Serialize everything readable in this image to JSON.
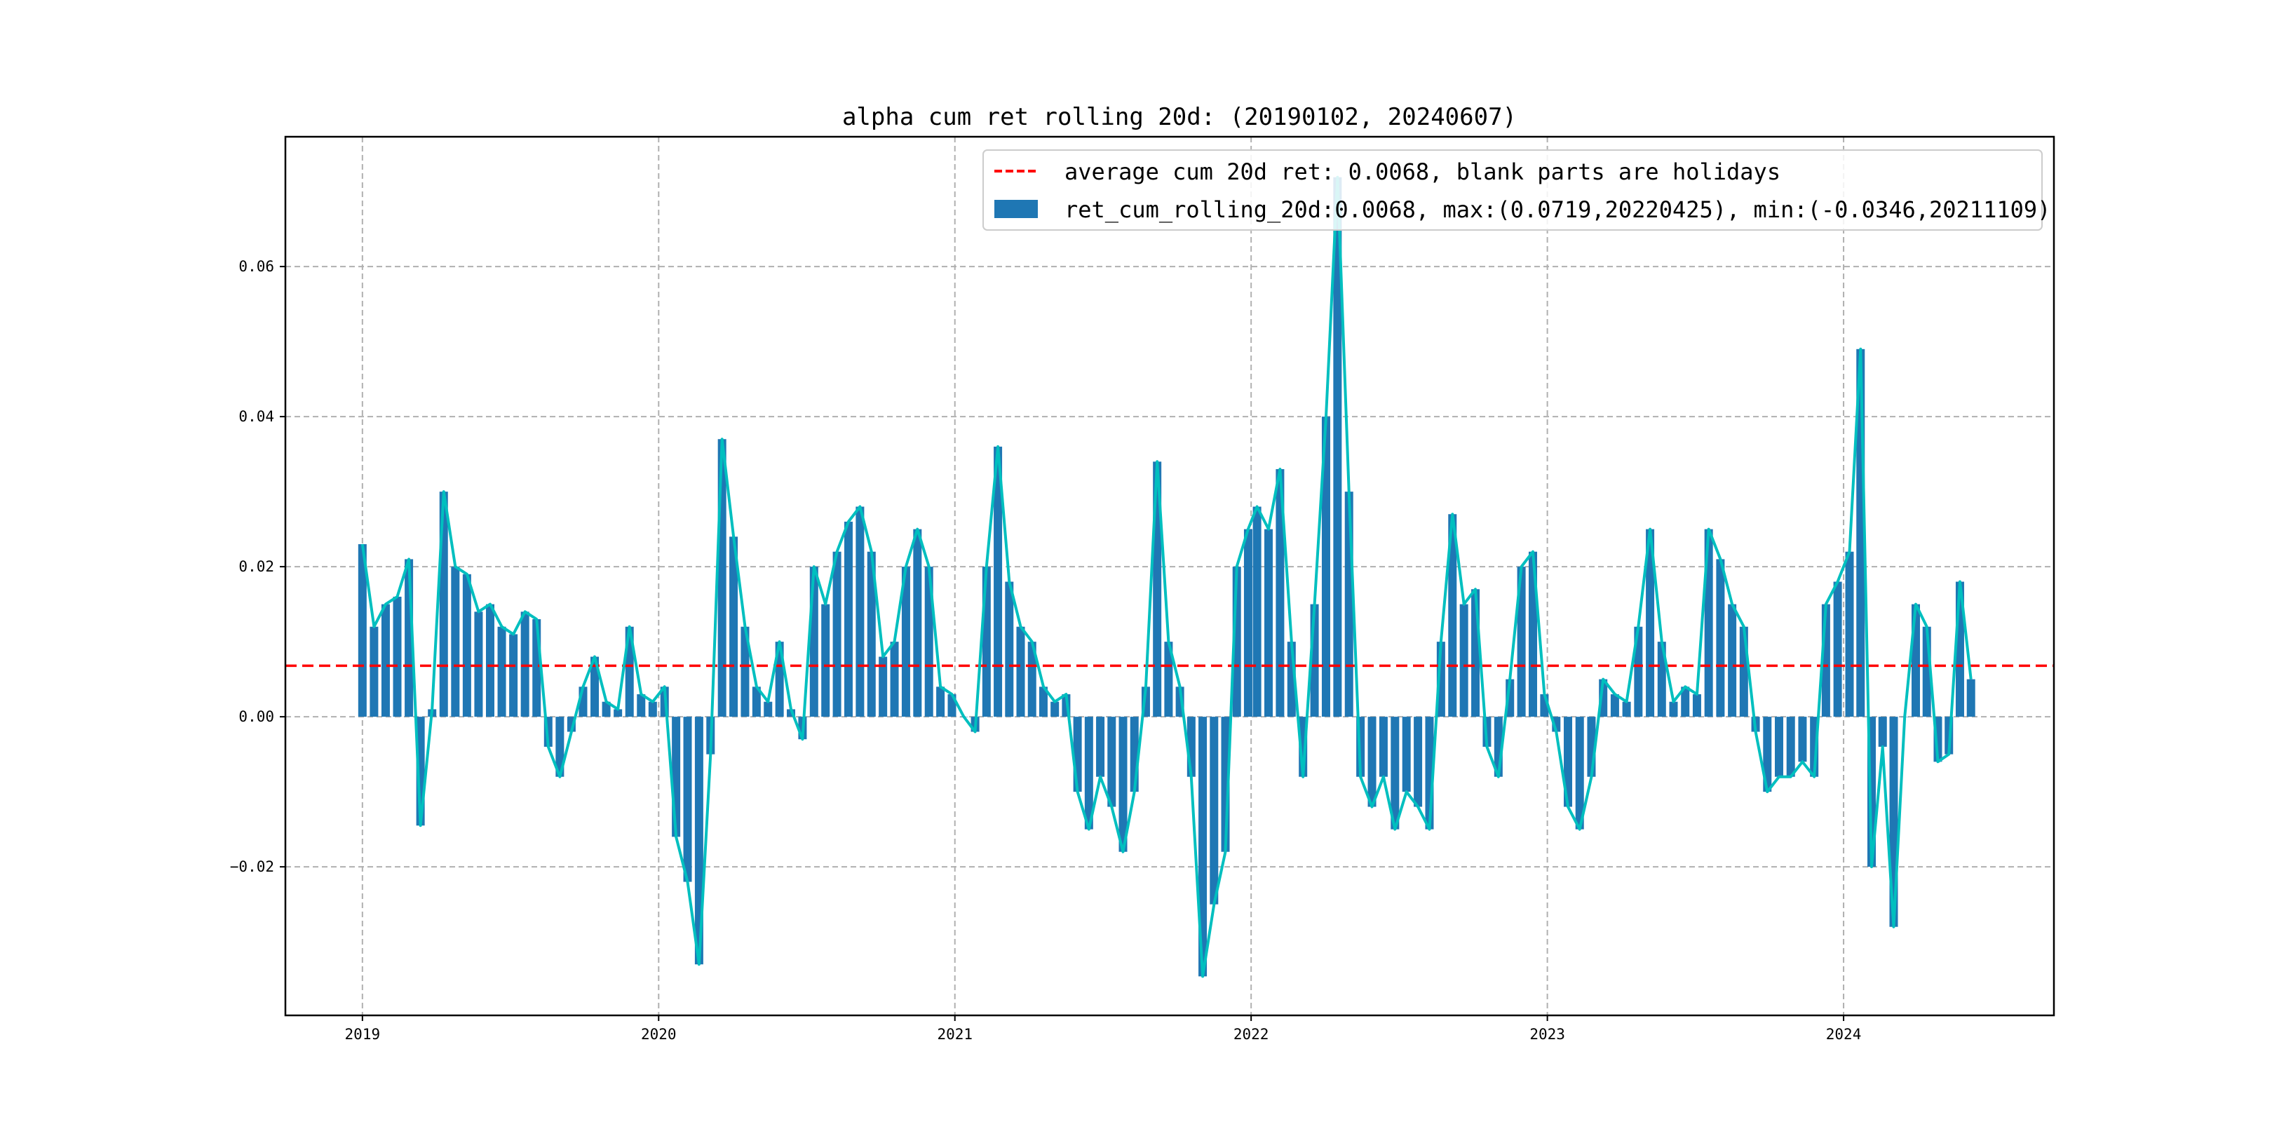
{
  "chart_data": {
    "type": "bar",
    "title": "alpha cum ret rolling 20d: (20190102, 20240607)",
    "xlabel": "",
    "ylabel": "",
    "xlim": [
      2018.74,
      2024.71
    ],
    "ylim": [
      -0.0398,
      0.0773
    ],
    "grid": true,
    "legend_position": "top-right",
    "x_ticks": [
      2019,
      2020,
      2021,
      2022,
      2023,
      2024
    ],
    "x_tick_labels": [
      "2019",
      "2020",
      "2021",
      "2022",
      "2023",
      "2024"
    ],
    "y_ticks": [
      -0.02,
      0.0,
      0.02,
      0.04,
      0.06
    ],
    "y_tick_labels": [
      "−0.02",
      "0.00",
      "0.02",
      "0.04",
      "0.06"
    ],
    "average": 0.0068,
    "max": {
      "value": 0.0719,
      "date": "20220425"
    },
    "min": {
      "value": -0.0346,
      "date": "20211109"
    },
    "legend": [
      {
        "label": "average cum 20d ret: 0.0068, blank parts are holidays",
        "style": "red-dashed-line"
      },
      {
        "label": "ret_cum_rolling_20d:0.0068, max:(0.0719,20220425), min:(-0.0346,20211109)",
        "style": "blue-bar"
      }
    ],
    "colors": {
      "bar": "#1f77b4",
      "line": "#00bfbf",
      "average": "#ff0000",
      "grid": "#b0b0b0"
    },
    "series": [
      {
        "year": 2019,
        "span": [
          2019.0,
          2019.98
        ],
        "values": [
          0.023,
          0.012,
          0.015,
          0.016,
          0.021,
          -0.0145,
          0.001,
          0.03,
          0.02,
          0.019,
          0.014,
          0.015,
          0.012,
          0.011,
          0.014,
          0.013,
          -0.004,
          -0.008,
          -0.002,
          0.004,
          0.008,
          0.002,
          0.001,
          0.012,
          0.003,
          0.002
        ]
      },
      {
        "year": 2020,
        "span": [
          2020.02,
          2020.99
        ],
        "values": [
          0.004,
          -0.016,
          -0.022,
          -0.033,
          -0.005,
          0.037,
          0.024,
          0.012,
          0.004,
          0.002,
          0.01,
          0.001,
          -0.003,
          0.02,
          0.015,
          0.022,
          0.026,
          0.028,
          0.022,
          0.008,
          0.01,
          0.02,
          0.025,
          0.02,
          0.004,
          0.003
        ]
      },
      {
        "year": 2021,
        "span": [
          2021.03,
          2021.99
        ],
        "values": [
          0.0,
          -0.002,
          0.02,
          0.036,
          0.018,
          0.012,
          0.01,
          0.004,
          0.002,
          0.003,
          -0.01,
          -0.015,
          -0.008,
          -0.012,
          -0.018,
          -0.01,
          0.004,
          0.034,
          0.01,
          0.004,
          -0.008,
          -0.0346,
          -0.025,
          -0.018,
          0.02,
          0.025
        ]
      },
      {
        "year": 2022,
        "span": [
          2022.02,
          2022.99
        ],
        "values": [
          0.028,
          0.025,
          0.033,
          0.01,
          -0.008,
          0.015,
          0.04,
          0.0719,
          0.03,
          -0.008,
          -0.012,
          -0.008,
          -0.015,
          -0.01,
          -0.012,
          -0.015,
          0.01,
          0.027,
          0.015,
          0.017,
          -0.004,
          -0.008,
          0.005,
          0.02,
          0.022,
          0.003
        ]
      },
      {
        "year": 2023,
        "span": [
          2023.03,
          2023.98
        ],
        "values": [
          -0.002,
          -0.012,
          -0.015,
          -0.008,
          0.005,
          0.003,
          0.002,
          0.012,
          0.025,
          0.01,
          0.002,
          0.004,
          0.003,
          0.025,
          0.021,
          0.015,
          0.012,
          -0.002,
          -0.01,
          -0.008,
          -0.008,
          -0.006,
          -0.008,
          0.015,
          0.018
        ]
      },
      {
        "year": 2024,
        "span": [
          2024.02,
          2024.43
        ],
        "values": [
          0.022,
          0.049,
          -0.02,
          -0.004,
          -0.028,
          0.0,
          0.015,
          0.012,
          -0.006,
          -0.005,
          0.018,
          0.005
        ]
      }
    ]
  }
}
